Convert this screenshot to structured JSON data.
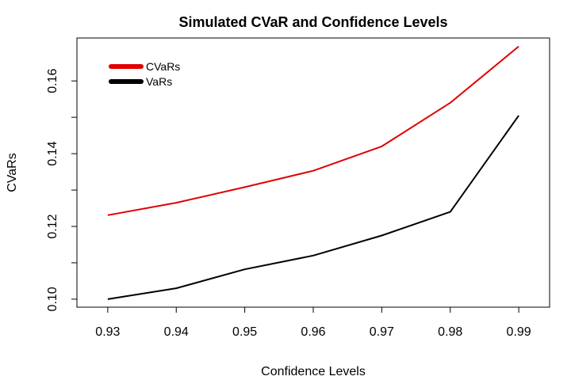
{
  "chart_data": {
    "type": "line",
    "title": "Simulated CVaR and Confidence Levels",
    "xlabel": "Confidence Levels",
    "ylabel": "CVaRs",
    "x": [
      0.93,
      0.94,
      0.95,
      0.96,
      0.97,
      0.98,
      0.99
    ],
    "x_tick_labels": [
      "0.93",
      "0.94",
      "0.95",
      "0.96",
      "0.97",
      "0.98",
      "0.99"
    ],
    "y_ticks": [
      0.1,
      0.12,
      0.14,
      0.16
    ],
    "y_tick_labels": [
      "0.10",
      "0.12",
      "0.14",
      "0.16"
    ],
    "xlim": [
      0.9255,
      0.9945
    ],
    "ylim": [
      0.0978,
      0.1718
    ],
    "grid": false,
    "legend_position": "top-left",
    "series": [
      {
        "name": "CVaRs",
        "color": "#e00000",
        "values": [
          0.1231,
          0.1265,
          0.1308,
          0.1353,
          0.142,
          0.154,
          0.1695
        ]
      },
      {
        "name": "VaRs",
        "color": "#000000",
        "values": [
          0.1,
          0.103,
          0.1082,
          0.112,
          0.1175,
          0.124,
          0.1505
        ]
      }
    ]
  }
}
